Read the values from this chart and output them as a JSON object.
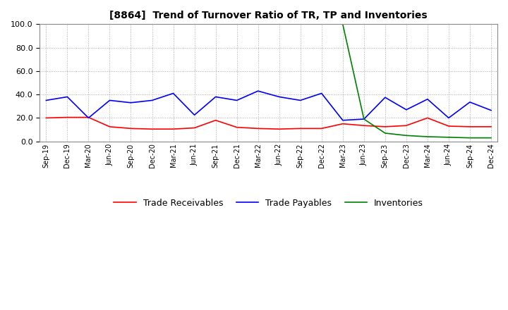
{
  "title": "[8864]  Trend of Turnover Ratio of TR, TP and Inventories",
  "ylim": [
    0.0,
    100.0
  ],
  "yticks": [
    0.0,
    20.0,
    40.0,
    60.0,
    80.0,
    100.0
  ],
  "background_color": "#ffffff",
  "grid_color": "#aaaaaa",
  "x_labels": [
    "Sep-19",
    "Dec-19",
    "Mar-20",
    "Jun-20",
    "Sep-20",
    "Dec-20",
    "Mar-21",
    "Jun-21",
    "Sep-21",
    "Dec-21",
    "Mar-22",
    "Jun-22",
    "Sep-22",
    "Dec-22",
    "Mar-23",
    "Jun-23",
    "Sep-23",
    "Dec-23",
    "Mar-24",
    "Jun-24",
    "Sep-24",
    "Dec-24"
  ],
  "trade_receivables": [
    20.0,
    20.5,
    20.5,
    12.5,
    11.0,
    10.5,
    10.5,
    11.5,
    18.0,
    12.0,
    11.0,
    10.5,
    11.0,
    11.0,
    15.0,
    13.5,
    12.5,
    13.5,
    20.0,
    13.0,
    12.5,
    12.5
  ],
  "trade_payables": [
    35.0,
    38.0,
    20.0,
    35.0,
    33.0,
    35.0,
    41.0,
    22.5,
    38.0,
    35.0,
    43.0,
    38.0,
    35.0,
    41.0,
    18.0,
    19.0,
    37.5,
    27.0,
    36.0,
    20.0,
    33.5,
    26.5
  ],
  "inventories": [
    null,
    null,
    null,
    null,
    null,
    null,
    null,
    null,
    null,
    null,
    null,
    null,
    null,
    null,
    100.0,
    19.0,
    7.0,
    5.0,
    4.0,
    3.5,
    3.0,
    3.0
  ],
  "tr_color": "#ff0000",
  "tp_color": "#0000ff",
  "inv_color": "#008000",
  "legend_labels": [
    "Trade Receivables",
    "Trade Payables",
    "Inventories"
  ]
}
